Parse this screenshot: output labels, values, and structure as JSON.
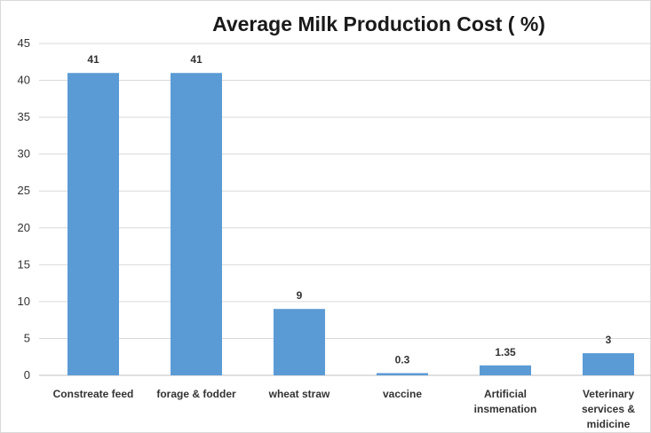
{
  "chart_data": {
    "type": "bar",
    "title": "Average Milk Production Cost ( %)",
    "categories": [
      [
        "Constreate feed"
      ],
      [
        "forage & fodder"
      ],
      [
        "wheat straw"
      ],
      [
        "vaccine"
      ],
      [
        "Artificial",
        "insmenation"
      ],
      [
        "Veterinary",
        "services &",
        "midicine"
      ]
    ],
    "values": [
      41,
      41,
      9,
      0.3,
      1.35,
      3
    ],
    "data_labels": [
      "41",
      "41",
      "9",
      "0.3",
      "1.35",
      "3"
    ],
    "ylim": [
      0,
      45
    ],
    "yticks": [
      0,
      5,
      10,
      15,
      20,
      25,
      30,
      35,
      40,
      45
    ],
    "grid": true,
    "legend": "none",
    "bar_color": "#5b9bd5",
    "grid_color": "#d9d9d9"
  }
}
